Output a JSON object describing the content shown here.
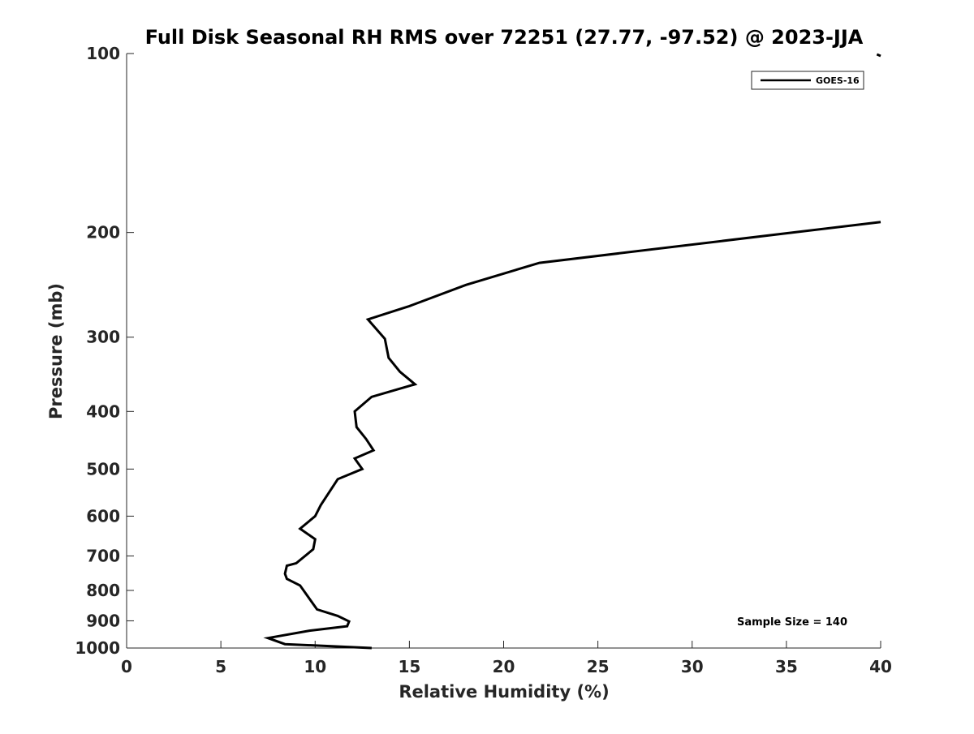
{
  "chart_data": {
    "type": "line",
    "title": "Full Disk Seasonal RH RMS over 72251 (27.77, -97.52) @ 2023-JJA",
    "xlabel": "Relative Humidity (%)",
    "ylabel": "Pressure (mb)",
    "xlim": [
      0,
      40
    ],
    "ylim": [
      1000,
      100
    ],
    "yscale": "log",
    "y_reversed": true,
    "xticks": [
      0,
      5,
      10,
      15,
      20,
      25,
      30,
      35,
      40
    ],
    "yticks": [
      100,
      200,
      300,
      400,
      500,
      600,
      700,
      800,
      900,
      1000
    ],
    "grid": false,
    "legend_position": "top-right",
    "series": [
      {
        "name": "GOES-16",
        "color": "#000000",
        "points": [
          {
            "p": 1000,
            "rh": 13.0
          },
          {
            "p": 985,
            "rh": 8.4
          },
          {
            "p": 962,
            "rh": 7.5
          },
          {
            "p": 935,
            "rh": 9.7
          },
          {
            "p": 919,
            "rh": 11.7
          },
          {
            "p": 902,
            "rh": 11.8
          },
          {
            "p": 883,
            "rh": 11.2
          },
          {
            "p": 861,
            "rh": 10.1
          },
          {
            "p": 785,
            "rh": 9.2
          },
          {
            "p": 765,
            "rh": 8.5
          },
          {
            "p": 750,
            "rh": 8.4
          },
          {
            "p": 727,
            "rh": 8.5
          },
          {
            "p": 720,
            "rh": 9.0
          },
          {
            "p": 682,
            "rh": 9.9
          },
          {
            "p": 656,
            "rh": 10.0
          },
          {
            "p": 630,
            "rh": 9.2
          },
          {
            "p": 600,
            "rh": 10.0
          },
          {
            "p": 575,
            "rh": 10.3
          },
          {
            "p": 520,
            "rh": 11.2
          },
          {
            "p": 500,
            "rh": 12.5
          },
          {
            "p": 480,
            "rh": 12.1
          },
          {
            "p": 465,
            "rh": 13.1
          },
          {
            "p": 445,
            "rh": 12.7
          },
          {
            "p": 425,
            "rh": 12.2
          },
          {
            "p": 400,
            "rh": 12.1
          },
          {
            "p": 378,
            "rh": 13.0
          },
          {
            "p": 360,
            "rh": 15.3
          },
          {
            "p": 343,
            "rh": 14.5
          },
          {
            "p": 325,
            "rh": 13.9
          },
          {
            "p": 302,
            "rh": 13.7
          },
          {
            "p": 280,
            "rh": 12.8
          },
          {
            "p": 266,
            "rh": 15.0
          },
          {
            "p": 245,
            "rh": 18.0
          },
          {
            "p": 225,
            "rh": 21.9
          },
          {
            "p": 192,
            "rh": 40.0
          }
        ]
      }
    ],
    "annotations": [
      "Sample Size = 140"
    ]
  }
}
